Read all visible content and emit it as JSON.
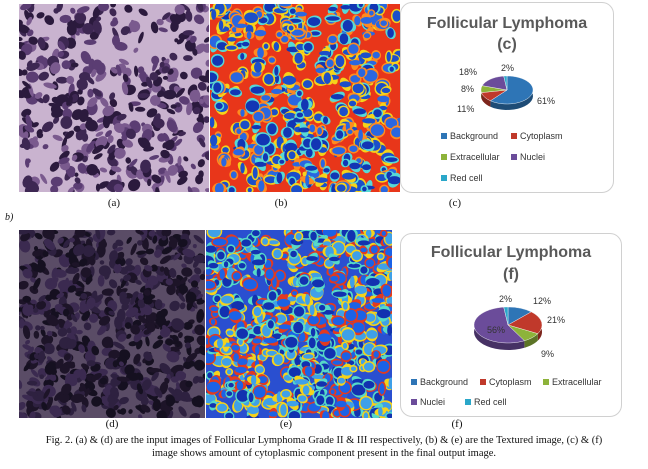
{
  "panel_labels": {
    "a": "(a)",
    "b": "(b)",
    "c": "(c)",
    "d": "(d)",
    "e": "(e)",
    "f": "(f)"
  },
  "side_label": "b)",
  "chart_data": [
    {
      "type": "pie",
      "title": "Follicular Lymphoma",
      "subtitle": "(c)",
      "categories": [
        "Background",
        "Cytoplasm",
        "Extracellular",
        "Nuclei",
        "Red cell"
      ],
      "values": [
        61,
        11,
        8,
        18,
        2
      ],
      "value_labels": [
        "61%",
        "11%",
        "8%",
        "18%",
        "2%"
      ],
      "colors": [
        "#2E75B6",
        "#C0392B",
        "#8DB33A",
        "#6B4C9A",
        "#2AA7C9"
      ],
      "legend": "bottom"
    },
    {
      "type": "pie",
      "title": "Follicular Lymphoma",
      "subtitle": "(f)",
      "categories": [
        "Background",
        "Cytoplasm",
        "Extracellular",
        "Nuclei",
        "Red cell"
      ],
      "values": [
        12,
        21,
        9,
        56,
        2
      ],
      "value_labels": [
        "12%",
        "21%",
        "9%",
        "56%",
        "2%"
      ],
      "colors": [
        "#2E75B6",
        "#C0392B",
        "#8DB33A",
        "#6B4C9A",
        "#2AA7C9"
      ],
      "legend": "bottom"
    }
  ],
  "caption": {
    "line1": "Fig. 2. (a) & (d) are the input images of Follicular Lymphoma Grade II & III respectively, (b) & (e) are the Textured image, (c) & (f)",
    "line2": "image shows amount of cytoplasmic component present in the final output image."
  }
}
